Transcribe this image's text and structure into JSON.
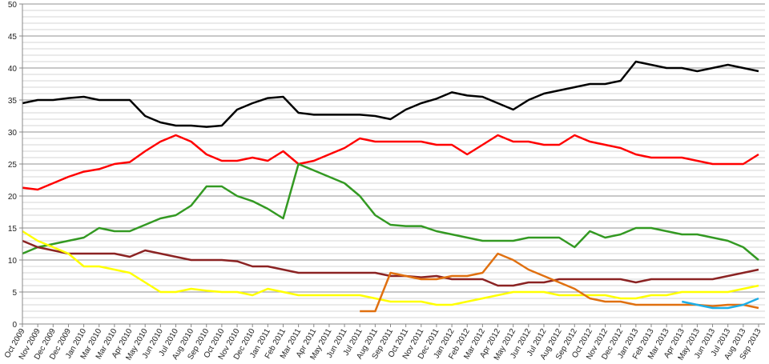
{
  "chart_data": {
    "type": "line",
    "title": "",
    "xlabel": "",
    "ylabel": "",
    "ylim": [
      0,
      50
    ],
    "yticks": [
      0,
      5,
      10,
      15,
      20,
      25,
      30,
      35,
      40,
      45,
      50
    ],
    "grid": "horizontal, every 1 unit, major every 5",
    "legend": "none",
    "categories": [
      "Oct 2009",
      "Nov 2009",
      "Dec 2009",
      "Dec 2009",
      "Jan 2010",
      "Mar 2010",
      "Mar 2010",
      "Apr 2010",
      "May 2010",
      "Jun 2010",
      "Jul 2010",
      "Aug 2010",
      "Sep 2010",
      "Oct 2010",
      "Nov 2010",
      "Dec 2010",
      "Jan 2011",
      "Feb 2011",
      "Mar 2011",
      "Apr 2011",
      "May 2011",
      "Jun 2011",
      "Jul 2011",
      "Aug 2011",
      "Sep 2011",
      "Oct 2011",
      "Nov 2011",
      "Dec 2011",
      "Jan 2012",
      "Feb 2012",
      "Mar 2012",
      "Apr 2012",
      "May 2012",
      "Jun 2012",
      "Jul 2012",
      "Aug 2012",
      "Sep 2012",
      "Oct 2012",
      "Nov 2012",
      "Dec 2012",
      "Jan 2013",
      "Feb 2013",
      "Mar 2013",
      "Apr 2013",
      "May 2013",
      "Jun 2013",
      "Jul 2013",
      "Aug 2013",
      "Sep 2013"
    ],
    "series": [
      {
        "color": "#000000",
        "values": [
          34.5,
          35,
          35,
          35.3,
          35.5,
          35,
          35,
          35,
          32.5,
          31.5,
          31,
          31,
          30.8,
          31,
          33.5,
          34.5,
          35.3,
          35.5,
          33,
          32.7,
          32.7,
          32.7,
          32.7,
          32.5,
          32,
          33.5,
          34.5,
          35.2,
          36.2,
          35.7,
          35.5,
          34.5,
          33.5,
          35,
          36,
          36.5,
          37,
          37.5,
          37.5,
          38,
          41,
          40.5,
          40,
          40,
          39.5,
          40,
          40.5,
          40,
          39.5
        ]
      },
      {
        "color": "#ff0000",
        "values": [
          21.3,
          21,
          22,
          23,
          23.8,
          24.2,
          25,
          25.3,
          27,
          28.5,
          29.5,
          28.5,
          26.5,
          25.5,
          25.5,
          26,
          25.5,
          27,
          25,
          25.5,
          26.5,
          27.5,
          29,
          28.5,
          28.5,
          28.5,
          28.5,
          28,
          28,
          26.5,
          28,
          29.5,
          28.5,
          28.5,
          28,
          28,
          29.5,
          28.5,
          28,
          27.5,
          26.5,
          26,
          26,
          26,
          25.5,
          25,
          25,
          25,
          26.5
        ]
      },
      {
        "color": "#339922",
        "values": [
          11,
          12,
          12.5,
          13,
          13.5,
          15,
          14.5,
          14.5,
          15.5,
          16.5,
          17,
          18.5,
          21.5,
          21.5,
          20,
          19.2,
          18,
          16.5,
          25,
          24,
          23,
          22,
          20,
          17,
          15.5,
          15.3,
          15.3,
          14.5,
          14,
          13.5,
          13,
          13,
          13,
          13.5,
          13.5,
          13.5,
          12,
          14.5,
          13.5,
          14,
          15,
          15,
          14.5,
          14,
          14,
          13.5,
          13,
          12,
          10
        ]
      },
      {
        "color": "#8b2323",
        "values": [
          13,
          12,
          11.5,
          11,
          11,
          11,
          11,
          10.5,
          11.5,
          11,
          10.5,
          10,
          10,
          10,
          9.8,
          9,
          9,
          8.5,
          8,
          8,
          8,
          8,
          8,
          8,
          7.5,
          7.5,
          7.3,
          7.5,
          7,
          7,
          7,
          6,
          6,
          6.5,
          6.5,
          7,
          7,
          7,
          7,
          7,
          6.5,
          7,
          7,
          7,
          7,
          7,
          7.5,
          8,
          8.5
        ]
      },
      {
        "color": "#ffff00",
        "values": [
          14.5,
          13,
          12,
          11,
          9,
          9,
          8.5,
          8,
          6.5,
          5,
          5,
          5.5,
          5.2,
          5,
          5,
          4.5,
          5.5,
          5,
          4.5,
          4.5,
          4.5,
          4.5,
          4.5,
          4,
          3.5,
          3.5,
          3.5,
          3,
          3,
          3.5,
          4,
          4.5,
          5,
          5,
          5,
          4.5,
          4.5,
          4.5,
          4.5,
          4,
          4,
          4.5,
          4.5,
          5,
          5,
          5,
          5,
          5.5,
          6
        ]
      },
      {
        "color": "#e07010",
        "values": [
          null,
          null,
          null,
          null,
          null,
          null,
          null,
          null,
          null,
          null,
          null,
          null,
          null,
          null,
          null,
          null,
          null,
          null,
          null,
          null,
          null,
          null,
          2,
          2,
          8,
          7.5,
          7,
          7,
          7.5,
          7.5,
          8,
          11,
          10,
          8.5,
          7.5,
          6.5,
          5.5,
          4,
          3.5,
          3.5,
          3,
          3,
          3,
          3,
          3,
          2.8,
          3,
          3,
          2.5
        ]
      },
      {
        "color": "#1eaee6",
        "values": [
          null,
          null,
          null,
          null,
          null,
          null,
          null,
          null,
          null,
          null,
          null,
          null,
          null,
          null,
          null,
          null,
          null,
          null,
          null,
          null,
          null,
          null,
          null,
          null,
          null,
          null,
          null,
          null,
          null,
          null,
          null,
          null,
          null,
          null,
          null,
          null,
          null,
          null,
          null,
          null,
          null,
          null,
          null,
          3.5,
          3,
          2.5,
          2.5,
          3,
          4
        ]
      }
    ]
  }
}
